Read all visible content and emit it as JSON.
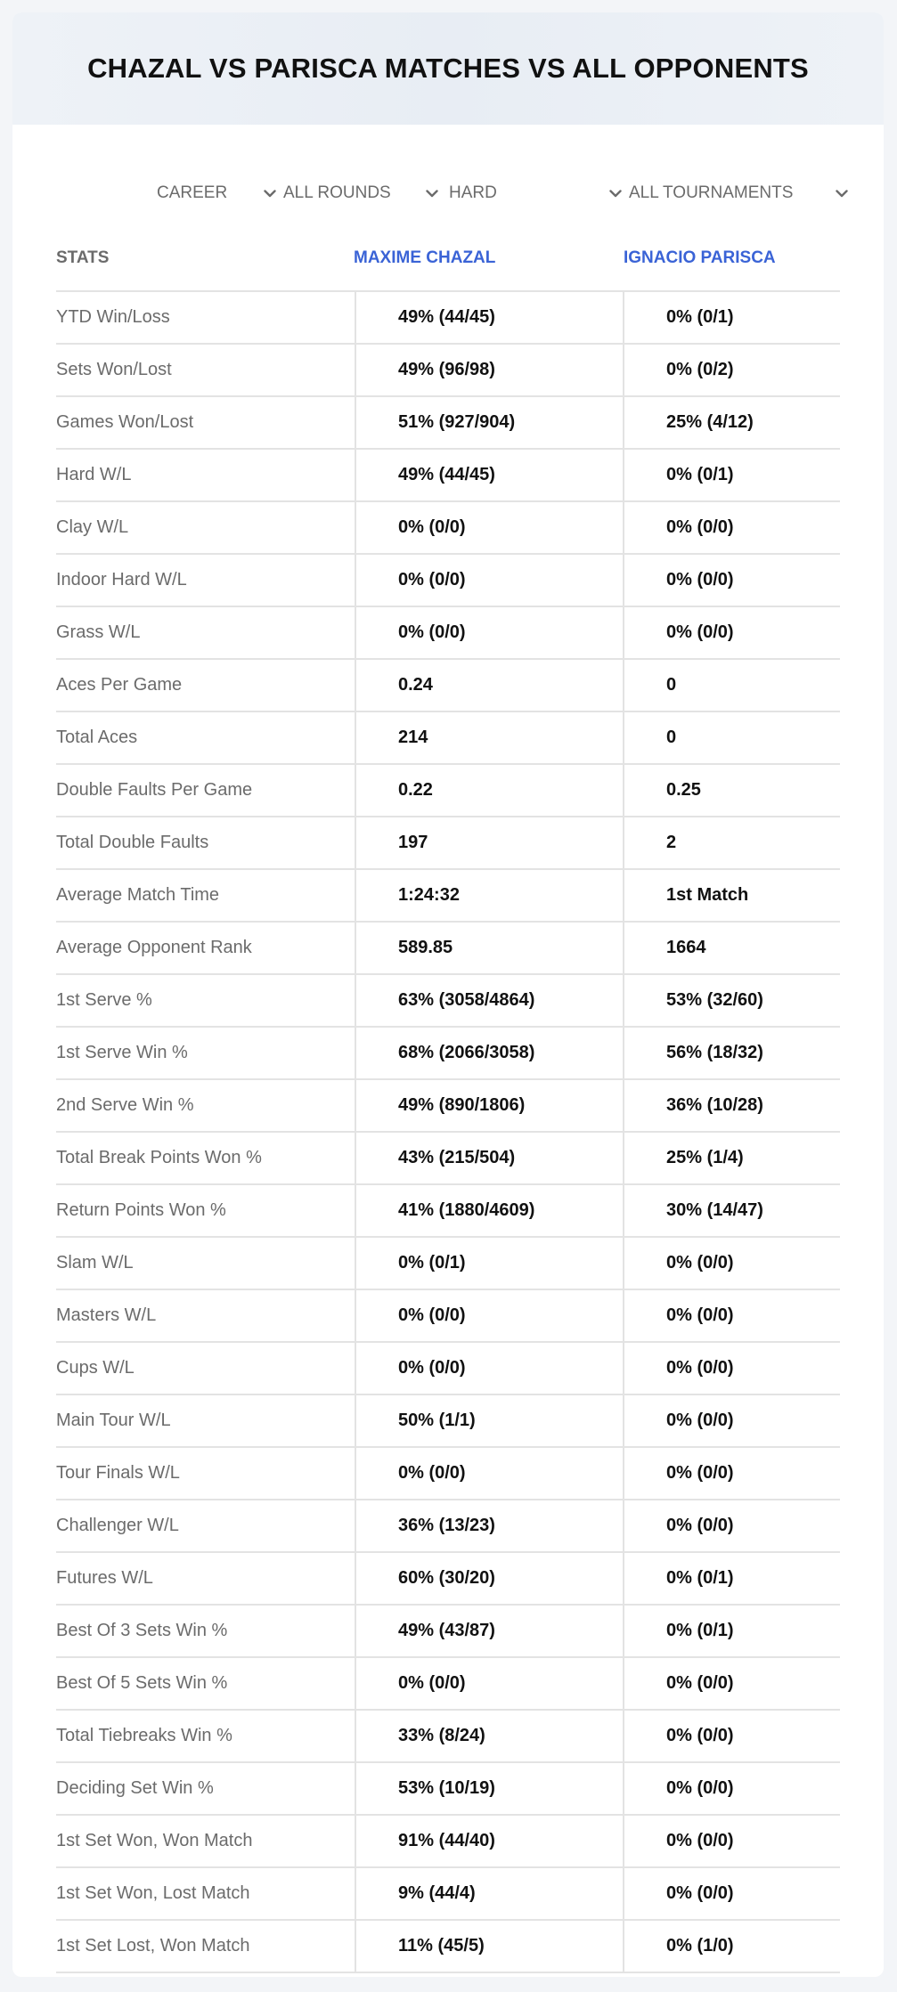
{
  "title": "CHAZAL VS PARISCA MATCHES VS ALL OPPONENTS",
  "filters": [
    {
      "value": "CAREER",
      "icon": "chevron-down-icon"
    },
    {
      "value": "ALL ROUNDS",
      "icon": "chevron-down-icon"
    },
    {
      "value": "HARD",
      "icon": "chevron-down-icon"
    },
    {
      "value": "ALL TOURNAMENTS",
      "icon": "chevron-down-icon"
    }
  ],
  "table": {
    "headers": {
      "stats": "STATS",
      "player1": "MAXIME CHAZAL",
      "player2": "IGNACIO PARISCA"
    },
    "accent_color": "#3a63d6",
    "rows": [
      {
        "label": "YTD Win/Loss",
        "p1": "49% (44/45)",
        "p2": "0% (0/1)"
      },
      {
        "label": "Sets Won/Lost",
        "p1": "49% (96/98)",
        "p2": "0% (0/2)"
      },
      {
        "label": "Games Won/Lost",
        "p1": "51% (927/904)",
        "p2": "25% (4/12)"
      },
      {
        "label": "Hard W/L",
        "p1": "49% (44/45)",
        "p2": "0% (0/1)"
      },
      {
        "label": "Clay W/L",
        "p1": "0% (0/0)",
        "p2": "0% (0/0)"
      },
      {
        "label": "Indoor Hard W/L",
        "p1": "0% (0/0)",
        "p2": "0% (0/0)"
      },
      {
        "label": "Grass W/L",
        "p1": "0% (0/0)",
        "p2": "0% (0/0)"
      },
      {
        "label": "Aces Per Game",
        "p1": "0.24",
        "p2": "0"
      },
      {
        "label": "Total Aces",
        "p1": "214",
        "p2": "0"
      },
      {
        "label": "Double Faults Per Game",
        "p1": "0.22",
        "p2": "0.25"
      },
      {
        "label": "Total Double Faults",
        "p1": "197",
        "p2": "2"
      },
      {
        "label": "Average Match Time",
        "p1": "1:24:32",
        "p2": "1st Match"
      },
      {
        "label": "Average Opponent Rank",
        "p1": "589.85",
        "p2": "1664"
      },
      {
        "label": "1st Serve %",
        "p1": "63% (3058/4864)",
        "p2": "53% (32/60)"
      },
      {
        "label": "1st Serve Win %",
        "p1": "68% (2066/3058)",
        "p2": "56% (18/32)"
      },
      {
        "label": "2nd Serve Win %",
        "p1": "49% (890/1806)",
        "p2": "36% (10/28)"
      },
      {
        "label": "Total Break Points Won %",
        "p1": "43% (215/504)",
        "p2": "25% (1/4)"
      },
      {
        "label": "Return Points Won %",
        "p1": "41% (1880/4609)",
        "p2": "30% (14/47)"
      },
      {
        "label": "Slam W/L",
        "p1": "0% (0/1)",
        "p2": "0% (0/0)"
      },
      {
        "label": "Masters W/L",
        "p1": "0% (0/0)",
        "p2": "0% (0/0)"
      },
      {
        "label": "Cups W/L",
        "p1": "0% (0/0)",
        "p2": "0% (0/0)"
      },
      {
        "label": "Main Tour W/L",
        "p1": "50% (1/1)",
        "p2": "0% (0/0)"
      },
      {
        "label": "Tour Finals W/L",
        "p1": "0% (0/0)",
        "p2": "0% (0/0)"
      },
      {
        "label": "Challenger W/L",
        "p1": "36% (13/23)",
        "p2": "0% (0/0)"
      },
      {
        "label": "Futures W/L",
        "p1": "60% (30/20)",
        "p2": "0% (0/1)"
      },
      {
        "label": "Best Of 3 Sets Win %",
        "p1": "49% (43/87)",
        "p2": "0% (0/1)"
      },
      {
        "label": "Best Of 5 Sets Win %",
        "p1": "0% (0/0)",
        "p2": "0% (0/0)"
      },
      {
        "label": "Total Tiebreaks Win %",
        "p1": "33% (8/24)",
        "p2": "0% (0/0)"
      },
      {
        "label": "Deciding Set Win %",
        "p1": "53% (10/19)",
        "p2": "0% (0/0)"
      },
      {
        "label": "1st Set Won, Won Match",
        "p1": "91% (44/40)",
        "p2": "0% (0/0)"
      },
      {
        "label": "1st Set Won, Lost Match",
        "p1": "9% (44/4)",
        "p2": "0% (0/0)"
      },
      {
        "label": "1st Set Lost, Won Match",
        "p1": "11% (45/5)",
        "p2": "0% (1/0)"
      }
    ]
  }
}
